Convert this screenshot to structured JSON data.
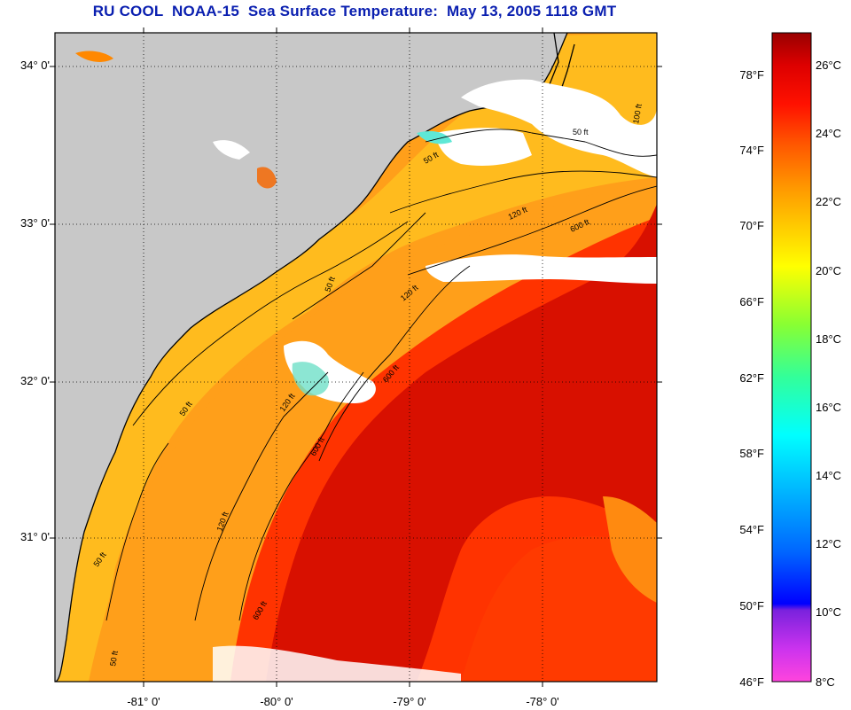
{
  "title": "RU COOL  NOAA-15  Sea Surface Temperature:  May 13, 2005 1118 GMT",
  "latitude_labels": [
    "34° 0'",
    "33° 0'",
    "32° 0'",
    "31° 0'"
  ],
  "longitude_labels": [
    "-81° 0'",
    "-80° 0'",
    "-79° 0'",
    "-78° 0'"
  ],
  "contour_labels": [
    "50 ft",
    "50 ft",
    "120 ft",
    "600 ft",
    "50 ft",
    "120 ft",
    "600 ft",
    "50 ft",
    "120 ft",
    "600 ft",
    "50 ft",
    "120 ft",
    "600 ft",
    "100 ft",
    "50 ft"
  ],
  "colorbar": {
    "fahrenheit_labels": [
      "78°F",
      "74°F",
      "70°F",
      "66°F",
      "62°F",
      "58°F",
      "54°F",
      "50°F",
      "46°F"
    ],
    "celsius_labels": [
      "26°C",
      "24°C",
      "22°C",
      "20°C",
      "18°C",
      "16°C",
      "14°C",
      "12°C",
      "10°C",
      "8°C"
    ],
    "range_celsius": [
      7.7,
      27.3
    ],
    "colors": [
      "#ff44dd",
      "#cc33ee",
      "#7a22dd",
      "#0000ff",
      "#0066ff",
      "#00aaff",
      "#00ffff",
      "#33ff99",
      "#88ff33",
      "#ffff00",
      "#ffcc00",
      "#ff9900",
      "#ff5500",
      "#ff1100",
      "#dd0000",
      "#990000"
    ]
  },
  "colors": {
    "land": "#c8c8c8",
    "cloud": "#ffffff",
    "title": "#0a1fb0",
    "shelf_water": "#ff9f1a",
    "nearshore_water": "#ffc020",
    "gulf_stream": "#d81000",
    "offshore_water": "#ff3300"
  }
}
